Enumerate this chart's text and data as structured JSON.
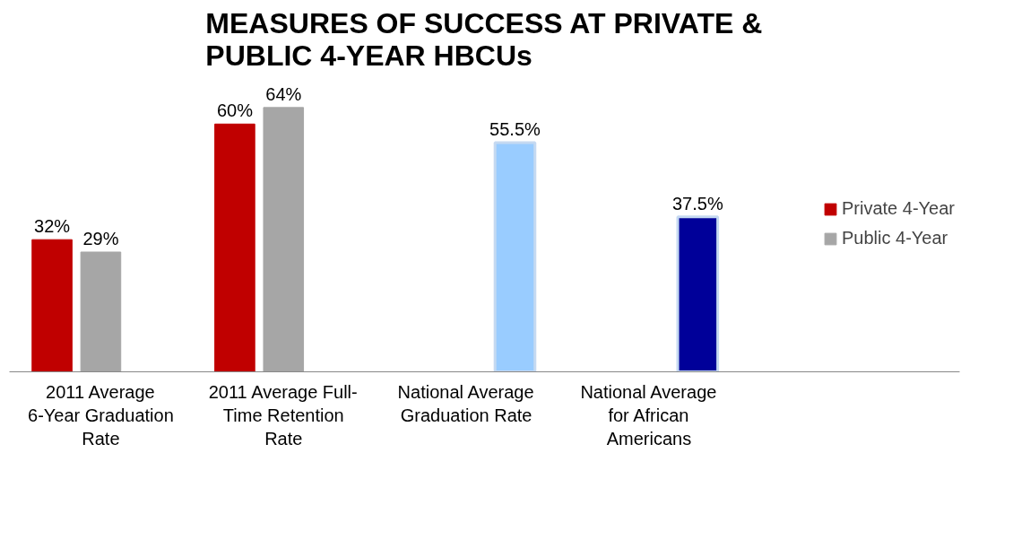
{
  "chart_data": {
    "type": "bar",
    "title": "MEASURES OF SUCCESS AT PRIVATE & PUBLIC 4-YEAR HBCUs",
    "categories": [
      "2011 Average 6-Year Graduation Rate",
      "2011 Average Full-Time Retention Rate",
      "National Average Graduation Rate",
      "National Average for African Americans"
    ],
    "series": [
      {
        "name": "Private 4-Year",
        "color": "#c00000",
        "values": [
          32,
          60,
          null,
          null
        ],
        "value_labels": [
          "32%",
          "60%",
          null,
          null
        ]
      },
      {
        "name": "Public 4-Year",
        "color": "#a6a6a6",
        "values": [
          29,
          64,
          null,
          null
        ],
        "value_labels": [
          "29%",
          "64%",
          null,
          null
        ]
      },
      {
        "colors": [
          null,
          null,
          "#99ccff",
          "#000099"
        ],
        "values": [
          null,
          null,
          55.5,
          37.5
        ],
        "value_labels": [
          null,
          null,
          "55.5%",
          "37.5%"
        ]
      }
    ],
    "legend": "right",
    "grid": false
  }
}
